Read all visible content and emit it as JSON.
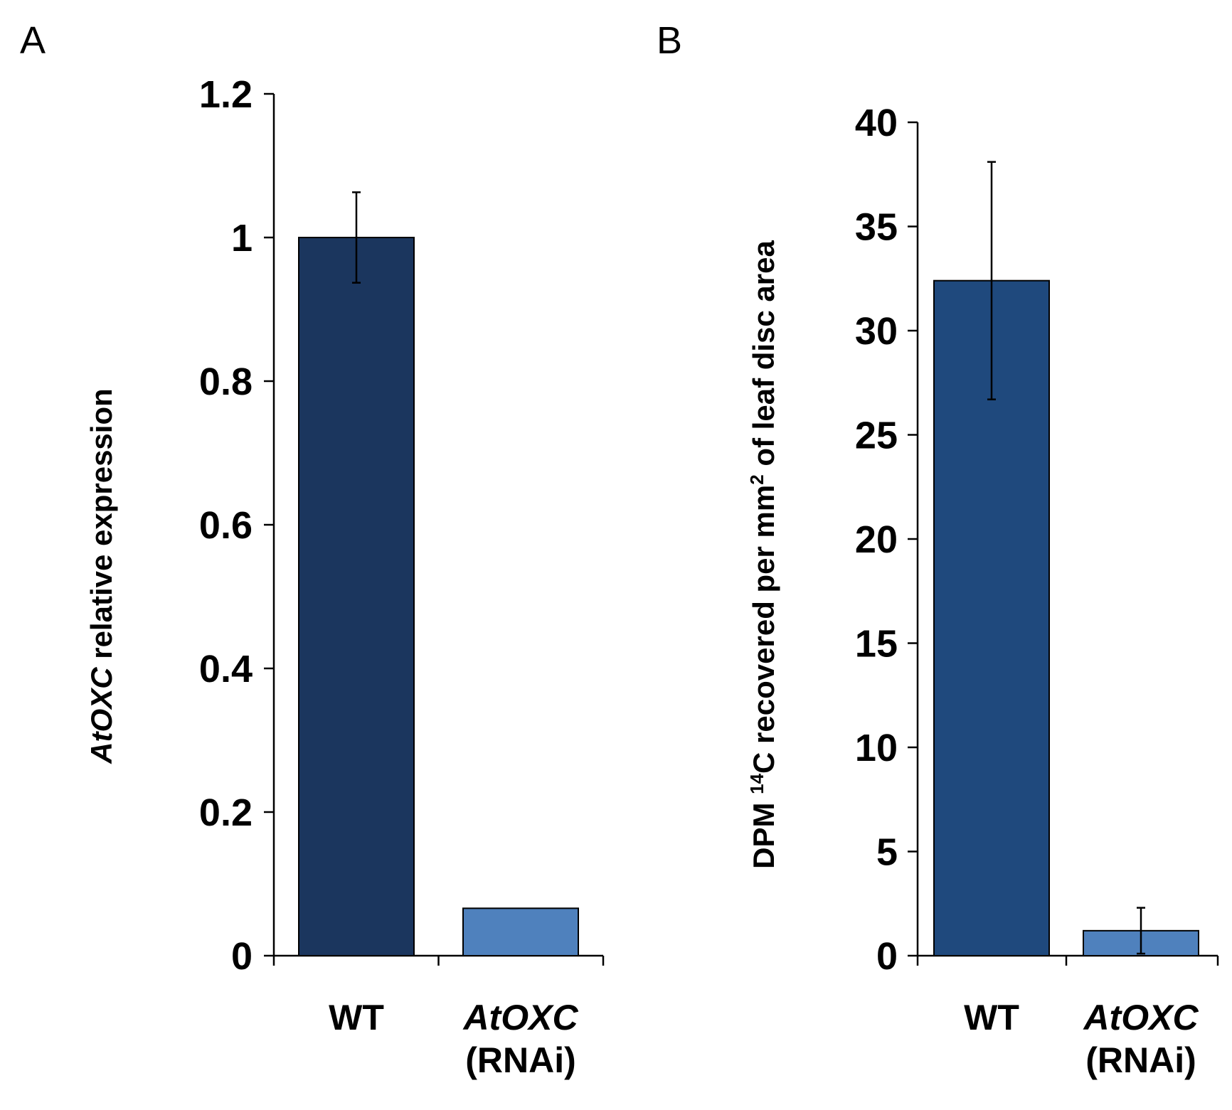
{
  "chart_data": [
    {
      "panel": "A",
      "type": "bar",
      "categories": [
        {
          "name": "WT",
          "sub": ""
        },
        {
          "name": "AtOXC",
          "sub": "(RNAi)"
        }
      ],
      "values": [
        1.0,
        0.066
      ],
      "errors": [
        0.063,
        0.0
      ],
      "colors": [
        "#1b365e",
        "#4f81bd"
      ],
      "ylabel_italic": "AtOXC",
      "ylabel_rest": " relative expression",
      "ylim": [
        0,
        1.2
      ],
      "yticks": [
        0,
        0.2,
        0.4,
        0.6,
        0.8,
        1,
        1.2
      ],
      "ytick_labels": [
        "0",
        "0.2",
        "0.4",
        "0.6",
        "0.8",
        "1",
        "1.2"
      ]
    },
    {
      "panel": "B",
      "type": "bar",
      "categories": [
        {
          "name": "WT",
          "sub": ""
        },
        {
          "name": "AtOXC",
          "sub": "(RNAi)"
        }
      ],
      "values": [
        32.4,
        1.2
      ],
      "errors": [
        5.7,
        1.1
      ],
      "colors": [
        "#1f497d",
        "#4f81bd"
      ],
      "ylabel_pre": "DPM ",
      "ylabel_sup1": "14",
      "ylabel_mid": "C recovered per mm",
      "ylabel_sup2": "2",
      "ylabel_post": " of leaf disc area",
      "ylim": [
        0,
        40
      ],
      "yticks": [
        0,
        5,
        10,
        15,
        20,
        25,
        30,
        35,
        40
      ],
      "ytick_labels": [
        "0",
        "5",
        "10",
        "15",
        "20",
        "25",
        "30",
        "35",
        "40"
      ]
    }
  ]
}
